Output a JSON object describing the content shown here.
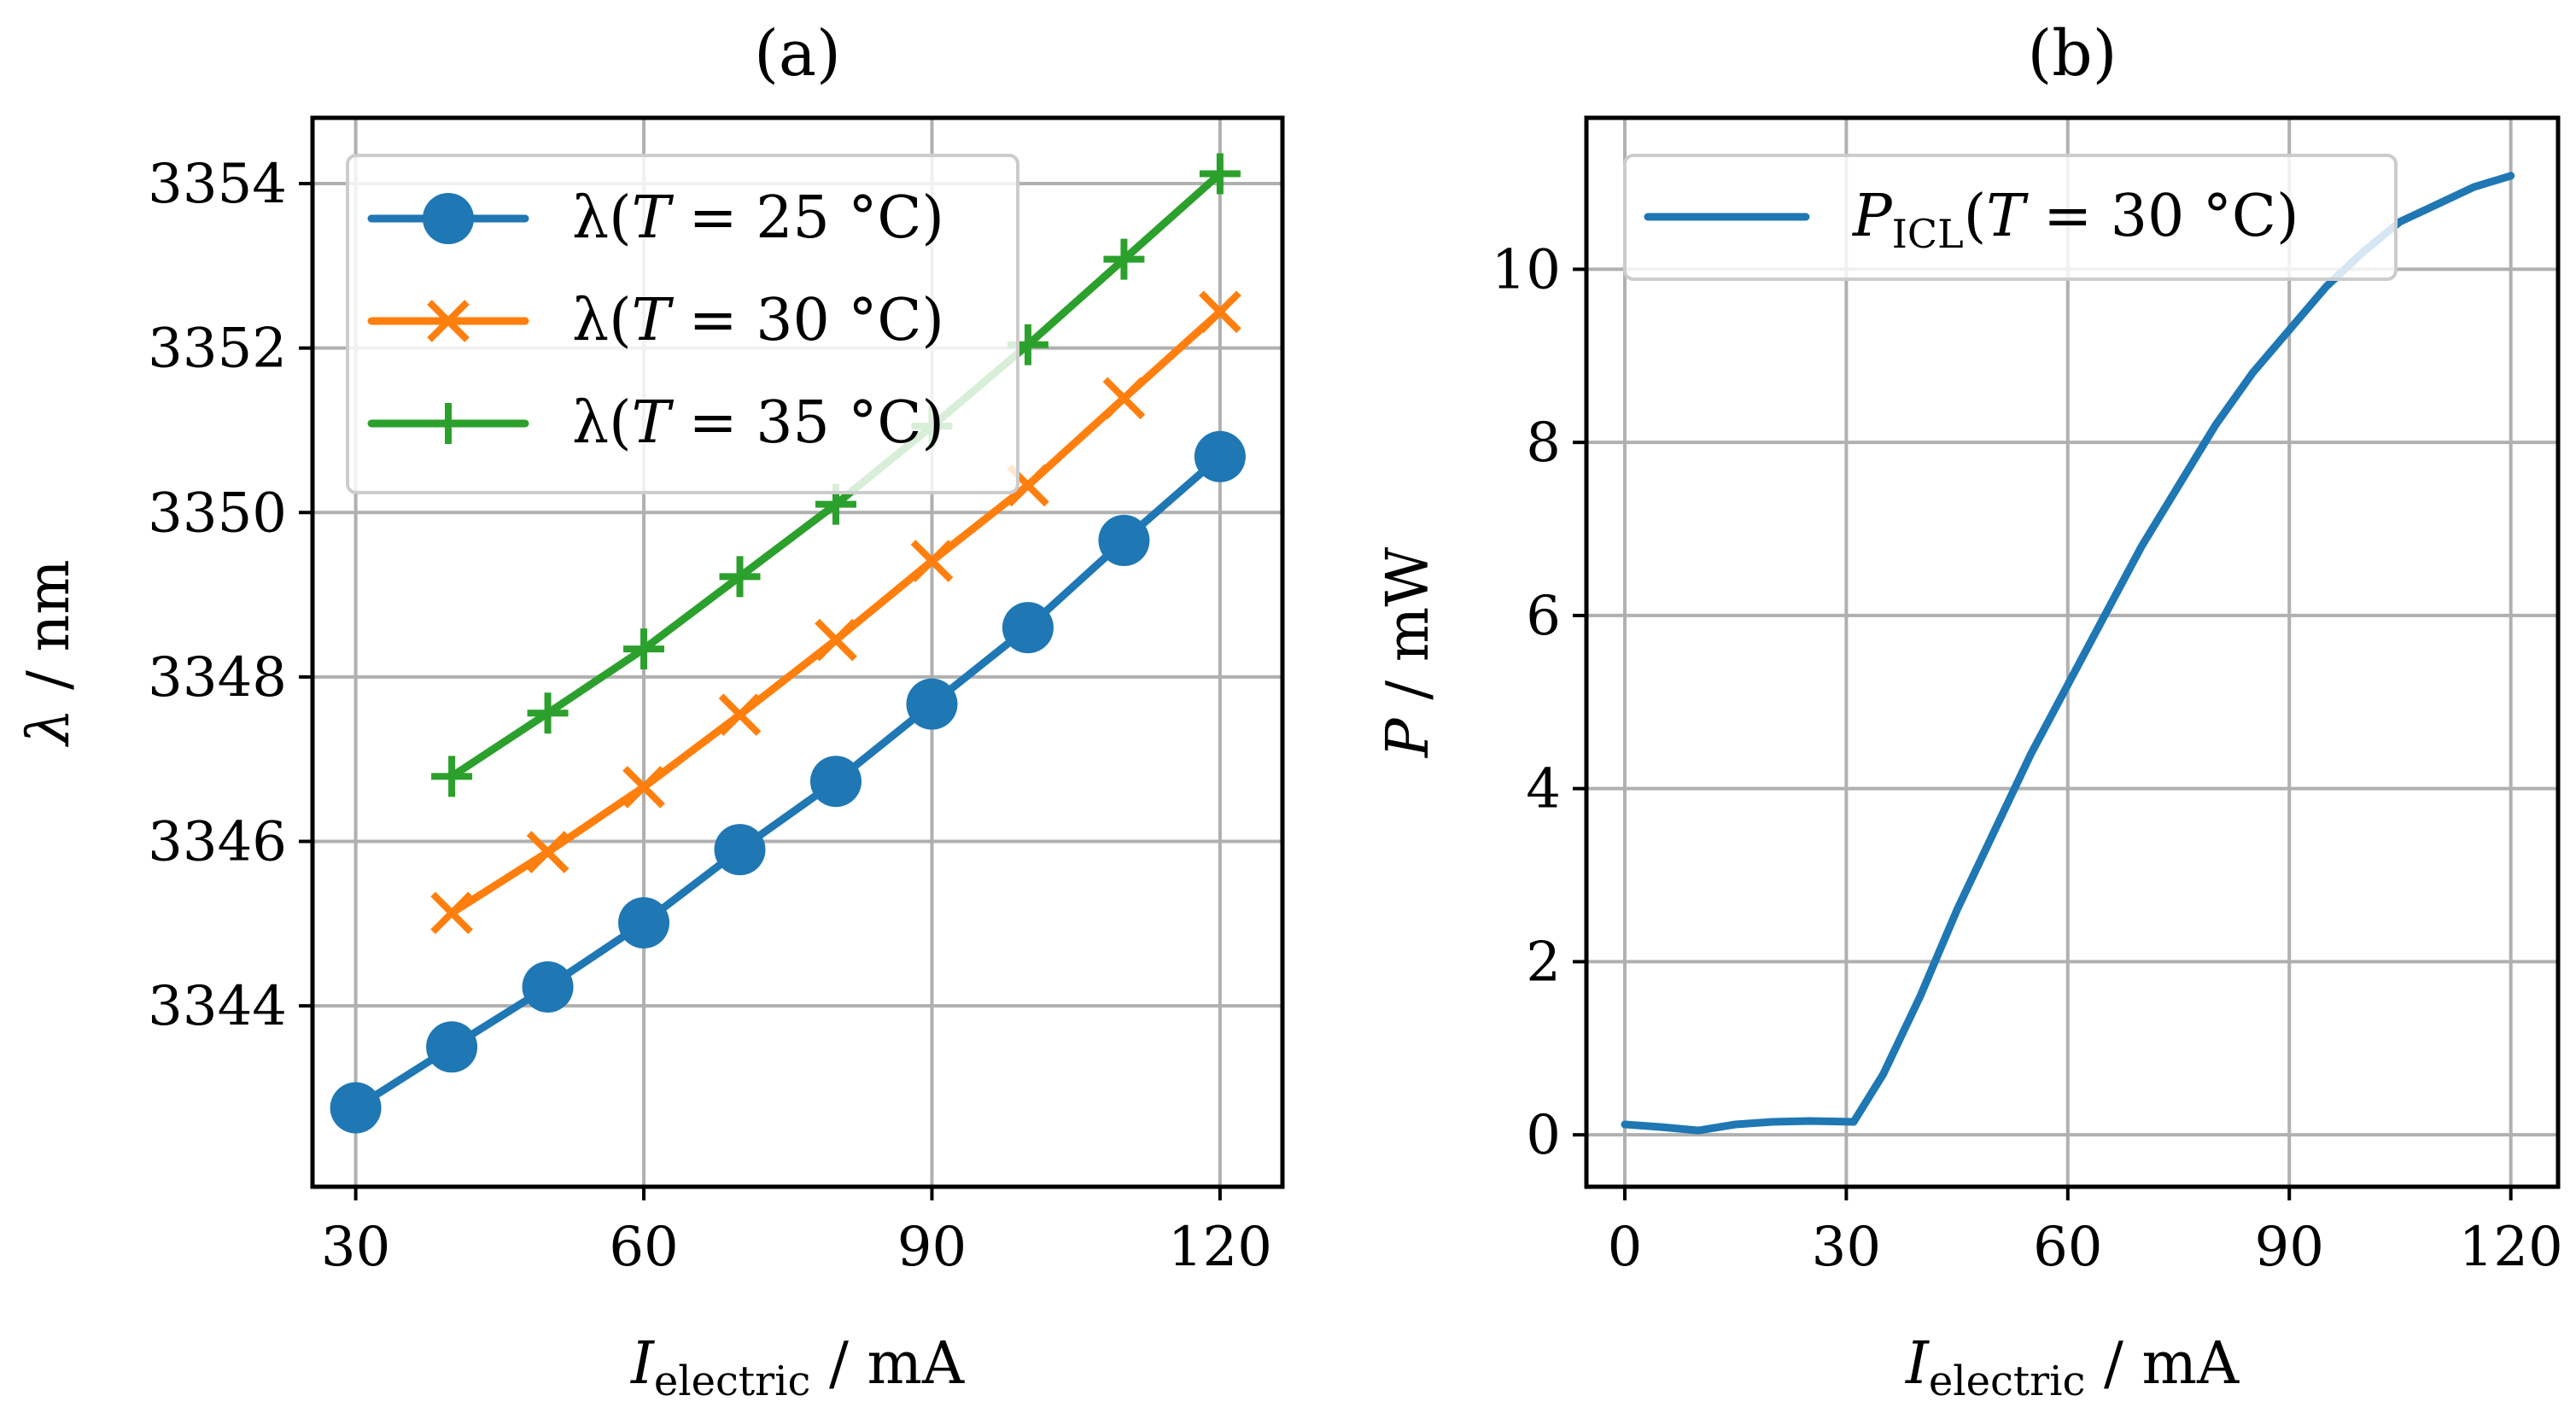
{
  "chart_data": [
    {
      "type": "line",
      "title": "(a)",
      "xlabel": {
        "main": "I",
        "sub": "electric",
        "unit": " / mA"
      },
      "ylabel": {
        "main": "λ",
        "unit": " / nm"
      },
      "xlim": [
        25.5,
        126.5
      ],
      "ylim": [
        3341.8,
        3354.8
      ],
      "xticks": [
        30,
        60,
        90,
        120
      ],
      "yticks": [
        3344,
        3346,
        3348,
        3350,
        3352,
        3354
      ],
      "grid": true,
      "legend_location": "upper-left",
      "series": [
        {
          "name": "λ(T = 25 °C)",
          "legend_parts": [
            "λ(",
            "T",
            " = 25 °C)"
          ],
          "marker": "circle",
          "color": "#1f77b4",
          "x": [
            30,
            40,
            50,
            60,
            70,
            80,
            90,
            100,
            110,
            120
          ],
          "y": [
            3342.76,
            3343.5,
            3344.23,
            3345.01,
            3345.9,
            3346.73,
            3347.67,
            3348.6,
            3349.66,
            3350.68
          ]
        },
        {
          "name": "λ(T = 30 °C)",
          "legend_parts": [
            "λ(",
            "T",
            " = 30 °C)"
          ],
          "marker": "x",
          "color": "#ff7f0e",
          "x": [
            40,
            50,
            60,
            70,
            80,
            90,
            100,
            110,
            120
          ],
          "y": [
            3345.13,
            3345.87,
            3346.66,
            3347.54,
            3348.45,
            3349.41,
            3350.33,
            3351.39,
            3352.44
          ]
        },
        {
          "name": "λ(T = 35 °C)",
          "legend_parts": [
            "λ(",
            "T",
            " = 35 °C)"
          ],
          "marker": "plus",
          "color": "#2ca02c",
          "x": [
            40,
            50,
            60,
            70,
            80,
            90,
            100,
            110,
            120
          ],
          "y": [
            3346.79,
            3347.56,
            3348.34,
            3349.22,
            3350.1,
            3351.05,
            3352.04,
            3353.08,
            3354.12
          ]
        }
      ]
    },
    {
      "type": "line",
      "title": "(b)",
      "xlabel": {
        "main": "I",
        "sub": "electric",
        "unit": " / mA"
      },
      "ylabel": {
        "main": "P",
        "unit": " / mW"
      },
      "xlim": [
        -5.2,
        126.4
      ],
      "ylim": [
        -0.6,
        11.75
      ],
      "xticks": [
        0,
        30,
        60,
        90,
        120
      ],
      "yticks": [
        0,
        2,
        4,
        6,
        8,
        10
      ],
      "grid": true,
      "legend_location": "upper-left",
      "series": [
        {
          "name": "P_ICL(T = 30 °C)",
          "legend_parts": [
            "P",
            "ICL",
            "(",
            "T",
            " = 30 °C)"
          ],
          "marker": "none",
          "color": "#1f77b4",
          "x": [
            0,
            5,
            10,
            15,
            20,
            25,
            31,
            35,
            40,
            45,
            50,
            55,
            60,
            65,
            70,
            75,
            80,
            85,
            90,
            95,
            100,
            105,
            110,
            115,
            120
          ],
          "y": [
            0.12,
            0.09,
            0.05,
            0.12,
            0.15,
            0.16,
            0.15,
            0.7,
            1.6,
            2.6,
            3.5,
            4.4,
            5.2,
            6.0,
            6.8,
            7.5,
            8.2,
            8.8,
            9.3,
            9.8,
            10.2,
            10.55,
            10.75,
            10.95,
            11.08
          ]
        }
      ]
    }
  ]
}
